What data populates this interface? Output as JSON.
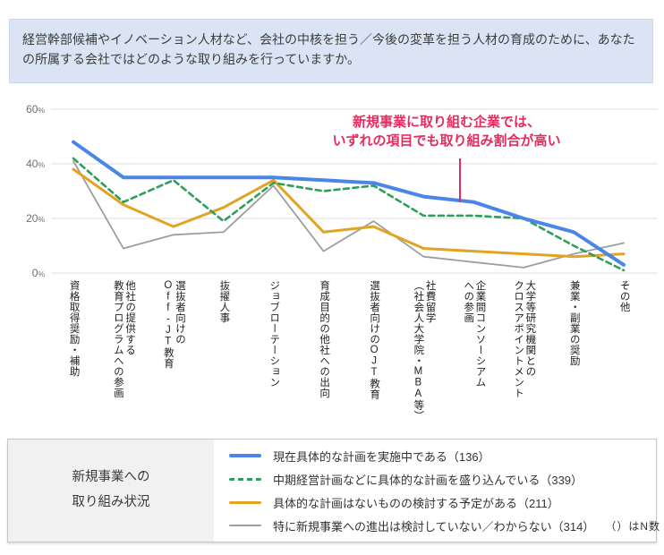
{
  "header": {
    "question": "経営幹部候補やイノベーション人材など、会社の中核を担う／今後の変革を担う人材の育成のために、あなたの所属する会社ではどのような取り組みを行っていますか。"
  },
  "annotation": {
    "line1": "新規事業に取り組む企業では、",
    "line2": "いずれの項目でも取り組み割合が高い",
    "color": "#e62c5e"
  },
  "legend": {
    "panel_title_line1": "新規事業への",
    "panel_title_line2": "取り組み状況",
    "note": "（）はN数"
  },
  "chart_data": {
    "type": "line",
    "categories": [
      "資格取得奨励・補助",
      "他社の提供する\n教育プログラムへの参画",
      "選抜者向けの\nOff-JT教育",
      "抜擢人事",
      "ジョブローテーション",
      "育成目的の他社への出向",
      "選抜者向けのOJT教育",
      "社費留学\n（社会人大学院・MBA等）",
      "企業間コンソーシアム\nへの参画",
      "大学等研究機関との\nクロスアポイントメント",
      "兼業・副業の奨励",
      "その他"
    ],
    "series": [
      {
        "name": "現在具体的な計画を実施中である（136）",
        "n": 136,
        "color": "#4a86e8",
        "style": "solid",
        "values": [
          48,
          35,
          35,
          35,
          35,
          34,
          33,
          28,
          26,
          20,
          15,
          3
        ]
      },
      {
        "name": "中期経営計画などに具体的な計画を盛り込んでいる（339）",
        "n": 339,
        "color": "#2f9e5b",
        "style": "dashed",
        "values": [
          42,
          26,
          34,
          19,
          33,
          30,
          32,
          21,
          21,
          20,
          10,
          1
        ]
      },
      {
        "name": "具体的な計画はないものの検討する予定がある（211）",
        "n": 211,
        "color": "#e2a322",
        "style": "solid",
        "values": [
          38,
          25,
          17,
          24,
          34,
          15,
          17,
          9,
          8,
          7,
          6,
          7
        ]
      },
      {
        "name": "特に新規事業への進出は検討していない／わからない（314）",
        "n": 314,
        "color": "#9e9e9e",
        "style": "solid",
        "values": [
          41,
          9,
          14,
          15,
          32,
          8,
          19,
          6,
          4,
          2,
          7,
          11
        ]
      }
    ],
    "xlabel": "",
    "ylabel": "",
    "ylim": [
      0,
      60
    ],
    "yticks": [
      0,
      20,
      40,
      60
    ],
    "ytick_suffix": "%",
    "grid": true,
    "legend_position": "bottom"
  }
}
